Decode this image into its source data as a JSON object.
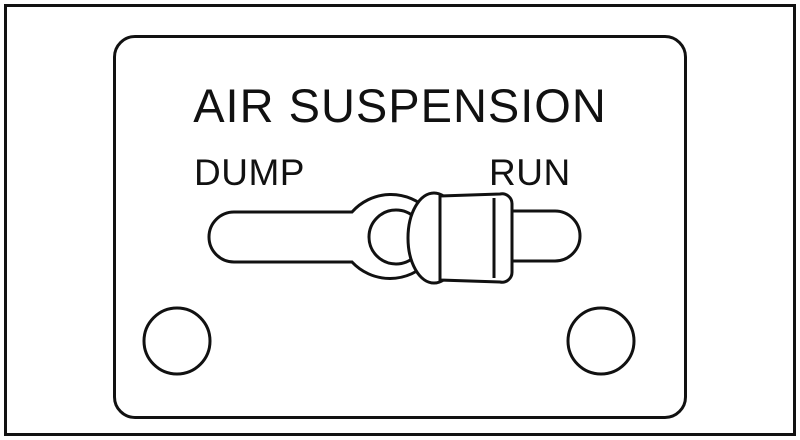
{
  "panel": {
    "title": "AIR SUSPENSION",
    "positions": {
      "left_label": "DUMP",
      "right_label": "RUN"
    },
    "toggle_state": "RUN"
  },
  "colors": {
    "ink": "#111111",
    "background": "#ffffff"
  }
}
